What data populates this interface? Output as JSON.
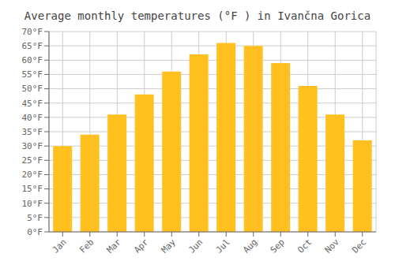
{
  "chart_data": {
    "type": "bar",
    "title": "Average monthly temperatures (°F ) in Ivančna Gorica",
    "categories": [
      "Jan",
      "Feb",
      "Mar",
      "Apr",
      "May",
      "Jun",
      "Jul",
      "Aug",
      "Sep",
      "Oct",
      "Nov",
      "Dec"
    ],
    "values": [
      30,
      34,
      41,
      48,
      56,
      62,
      66,
      65,
      59,
      51,
      41,
      32
    ],
    "color": "#FFC020",
    "ylim": [
      0,
      70
    ],
    "yticks": [
      {
        "value": 0,
        "label": "0°F"
      },
      {
        "value": 5,
        "label": "5°F"
      },
      {
        "value": 10,
        "label": "10°F"
      },
      {
        "value": 15,
        "label": "15°F"
      },
      {
        "value": 20,
        "label": "20°F"
      },
      {
        "value": 25,
        "label": "25°F"
      },
      {
        "value": 30,
        "label": "30°F"
      },
      {
        "value": 35,
        "label": "35°F"
      },
      {
        "value": 40,
        "label": "40°F"
      },
      {
        "value": 45,
        "label": "45°F"
      },
      {
        "value": 50,
        "label": "50°F"
      },
      {
        "value": 55,
        "label": "55°F"
      },
      {
        "value": 60,
        "label": "60°F"
      },
      {
        "value": 65,
        "label": "65°F"
      },
      {
        "value": 70,
        "label": "70°F"
      }
    ],
    "grid": true
  }
}
